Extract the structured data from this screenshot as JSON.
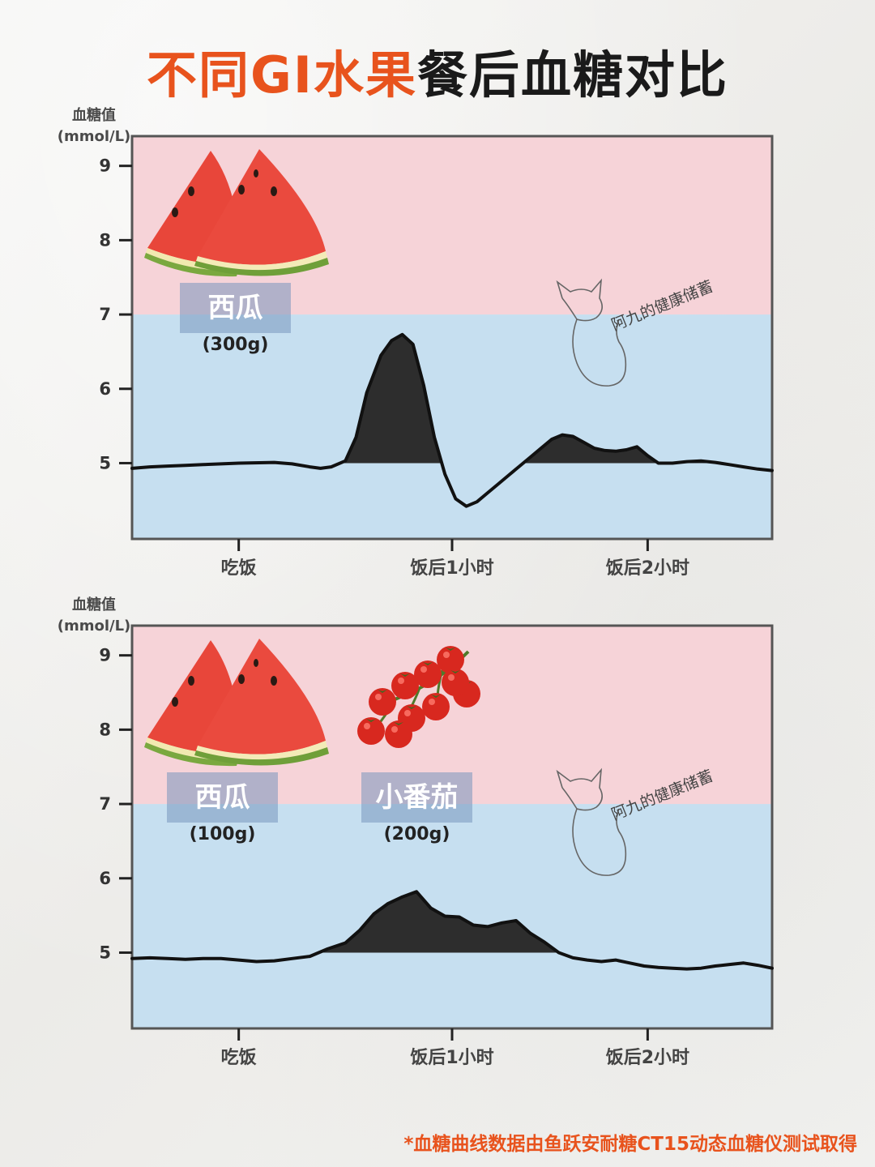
{
  "title": {
    "highlight": "不同GI水果",
    "rest": "餐后血糖对比"
  },
  "footnote": "*血糖曲线数据由鱼跃安耐糖CT15动态血糖仪测试取得",
  "watermark": "阿九的健康储蓄",
  "colors": {
    "accent": "#e8531d",
    "high_zone": "#f6d3d8",
    "normal_zone": "#c6dff0",
    "curve": "#111111",
    "excess_fill": "#2d2d2d",
    "tag_bg": "#7896be"
  },
  "charts": [
    {
      "ylabel_line1": "血糖值",
      "ylabel_line2": "(mmol/L)",
      "foods": [
        {
          "label": "西瓜",
          "amount": "(300g)",
          "icon": "watermelon-icon"
        }
      ]
    },
    {
      "ylabel_line1": "血糖值",
      "ylabel_line2": "(mmol/L)",
      "foods": [
        {
          "label": "西瓜",
          "amount": "(100g)",
          "icon": "watermelon-icon"
        },
        {
          "label": "小番茄",
          "amount": "(200g)",
          "icon": "cherry-tomatoes-icon"
        }
      ]
    }
  ],
  "chart_data": [
    {
      "type": "line",
      "ylabel": "血糖值 (mmol/L)",
      "yticks": [
        5,
        6,
        7,
        8,
        9
      ],
      "ylim": [
        3.98,
        9.4
      ],
      "xlim": [
        0,
        180
      ],
      "xticks": [
        {
          "x": 30,
          "label": "吃饭"
        },
        {
          "x": 90,
          "label": "饭后1小时"
        },
        {
          "x": 145,
          "label": "饭后2小时"
        }
      ],
      "zones": [
        {
          "from": 3.98,
          "to": 7,
          "name": "normal"
        },
        {
          "from": 7,
          "to": 9.4,
          "name": "high"
        }
      ],
      "baseline": 5,
      "x": [
        0,
        5,
        10,
        15,
        20,
        30,
        40,
        45,
        50,
        53,
        56,
        60,
        63,
        66,
        70,
        73,
        76,
        79,
        82,
        85,
        88,
        91,
        94,
        97,
        100,
        103,
        106,
        109,
        112,
        115,
        118,
        121,
        124,
        127,
        130,
        133,
        136,
        139,
        142,
        145,
        148,
        152,
        156,
        160,
        164,
        168,
        172,
        176,
        180
      ],
      "y": [
        4.93,
        4.95,
        4.96,
        4.97,
        4.98,
        5.0,
        5.01,
        4.99,
        4.95,
        4.93,
        4.95,
        5.03,
        5.35,
        5.95,
        6.45,
        6.65,
        6.73,
        6.6,
        6.05,
        5.35,
        4.85,
        4.52,
        4.42,
        4.48,
        4.6,
        4.72,
        4.84,
        4.96,
        5.08,
        5.2,
        5.32,
        5.38,
        5.36,
        5.28,
        5.2,
        5.17,
        5.16,
        5.18,
        5.22,
        5.1,
        5.0,
        5.0,
        5.02,
        5.03,
        5.01,
        4.98,
        4.95,
        4.92,
        4.9
      ]
    },
    {
      "type": "line",
      "ylabel": "血糖值 (mmol/L)",
      "yticks": [
        5,
        6,
        7,
        8,
        9
      ],
      "ylim": [
        3.98,
        9.4
      ],
      "xlim": [
        0,
        180
      ],
      "xticks": [
        {
          "x": 30,
          "label": "吃饭"
        },
        {
          "x": 90,
          "label": "饭后1小时"
        },
        {
          "x": 145,
          "label": "饭后2小时"
        }
      ],
      "zones": [
        {
          "from": 3.98,
          "to": 7,
          "name": "normal"
        },
        {
          "from": 7,
          "to": 9.4,
          "name": "high"
        }
      ],
      "baseline": 5,
      "x": [
        0,
        5,
        10,
        15,
        20,
        25,
        30,
        35,
        40,
        45,
        50,
        55,
        60,
        64,
        68,
        72,
        76,
        80,
        84,
        88,
        92,
        96,
        100,
        104,
        108,
        112,
        116,
        120,
        124,
        128,
        132,
        136,
        140,
        144,
        148,
        152,
        156,
        160,
        164,
        168,
        172,
        176,
        180
      ],
      "y": [
        4.92,
        4.93,
        4.92,
        4.91,
        4.92,
        4.92,
        4.9,
        4.88,
        4.89,
        4.92,
        4.95,
        5.05,
        5.13,
        5.3,
        5.52,
        5.66,
        5.75,
        5.82,
        5.6,
        5.49,
        5.48,
        5.37,
        5.35,
        5.4,
        5.43,
        5.26,
        5.14,
        5.0,
        4.93,
        4.9,
        4.88,
        4.9,
        4.86,
        4.82,
        4.8,
        4.79,
        4.78,
        4.79,
        4.82,
        4.84,
        4.86,
        4.83,
        4.79
      ]
    }
  ]
}
